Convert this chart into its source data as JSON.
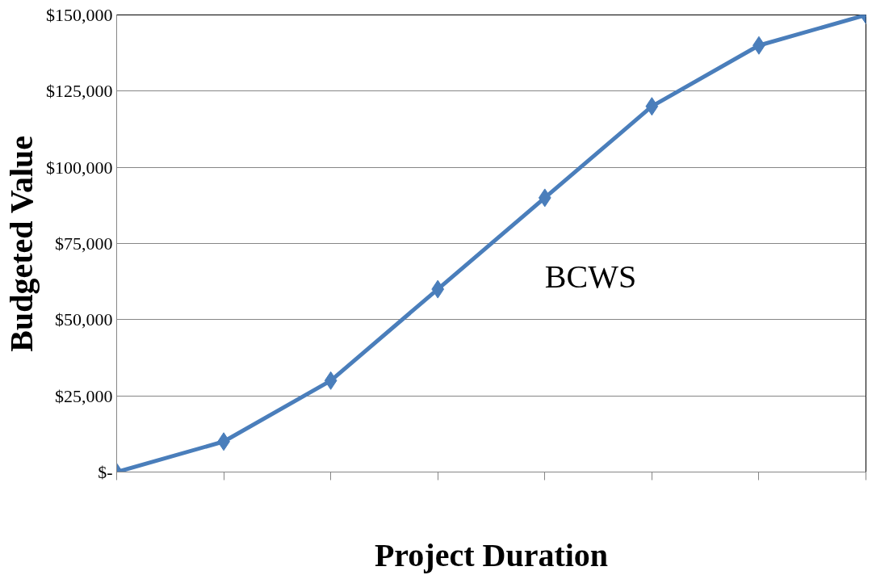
{
  "chart_data": {
    "type": "line",
    "xlabel": "Project Duration",
    "ylabel": "Budgeted Value",
    "categories": [
      null,
      null,
      null,
      null,
      null,
      null,
      null,
      null
    ],
    "series": [
      {
        "name": "BCWS",
        "color": "#4a7ebb",
        "values": [
          0,
          10000,
          30000,
          60000,
          90000,
          120000,
          140000,
          150000
        ]
      }
    ],
    "ylim": [
      0,
      150000
    ],
    "yticks": [
      {
        "value": 0,
        "label": "$-"
      },
      {
        "value": 25000,
        "label": "$25,000"
      },
      {
        "value": 50000,
        "label": "$50,000"
      },
      {
        "value": 75000,
        "label": "$75,000"
      },
      {
        "value": 100000,
        "label": "$100,000"
      },
      {
        "value": 125000,
        "label": "$125,000"
      },
      {
        "value": 150000,
        "label": "$150,000"
      }
    ],
    "grid": "y",
    "marker": "diamond",
    "line_style": "solid"
  }
}
